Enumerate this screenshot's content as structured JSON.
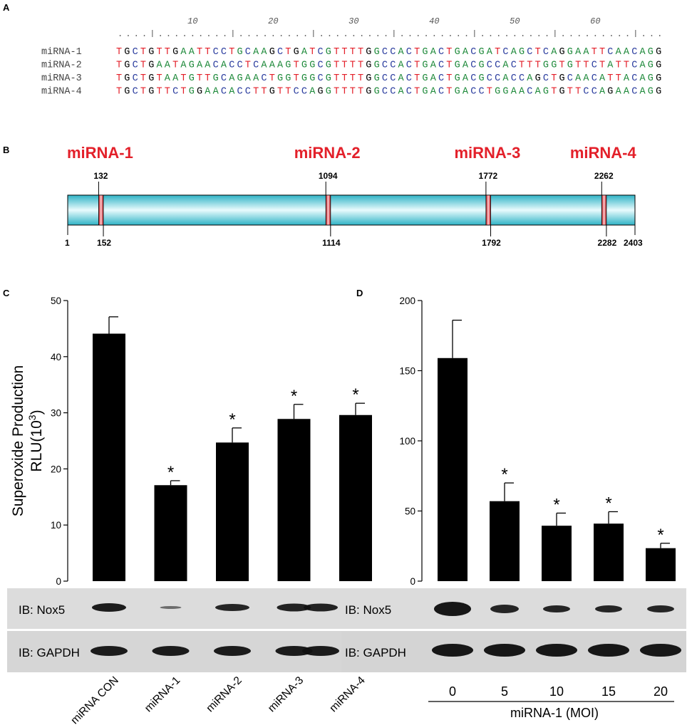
{
  "panel_labels": {
    "a": "A",
    "b": "B",
    "c": "C",
    "d": "D"
  },
  "alignment": {
    "ruler_marks": [
      "10",
      "20",
      "30",
      "40",
      "50",
      "60"
    ],
    "rows": [
      {
        "name": "miRNA-1",
        "seq": "TGCTGTTGAATTCCTGCAAGCTGATCGTTTTGGCCACTGACTGACGATCAGCTCAGGAATTCAACAGG"
      },
      {
        "name": "miRNA-2",
        "seq": "TGCTGAATAGAACACCTCAAAGTGGCGTTTTGGCCACTGACTGACGCCACTTTGGTGTTCTATTCAGG"
      },
      {
        "name": "miRNA-3",
        "seq": "TGCTGTAATGTTGCAGAACTGGTGGCGTTTTGGCCACTGACTGACGCCACCAGCTGCAACATTACAGG"
      },
      {
        "name": "miRNA-4",
        "seq": "TGCTGTTCTGGAACACCTTGTTCCAGGTTTTGGCCACTGACTGACCTGGAACAGTGTTCCAGAACAGG"
      }
    ],
    "base_colors": {
      "T": "#e3202a",
      "G": "#1f8a3b",
      "C": "#2a3c9e",
      "A": "#2a3c9e"
    }
  },
  "map": {
    "total_start": "1",
    "total_end": "2403",
    "sites": [
      {
        "name": "miRNA-1",
        "start": "132",
        "end": "152"
      },
      {
        "name": "miRNA-2",
        "start": "1094",
        "end": "1114"
      },
      {
        "name": "miRNA-3",
        "start": "1772",
        "end": "1792"
      },
      {
        "name": "miRNA-4",
        "start": "2262",
        "end": "2282"
      }
    ]
  },
  "blot_labels": {
    "c_top": "IB: Nox5",
    "c_bottom": "IB: GAPDH",
    "d_top": "IB: Nox5",
    "d_bottom": "IB: GAPDH"
  },
  "chart_data": [
    {
      "type": "bar",
      "panel": "C",
      "categories": [
        "miRNA CON",
        "miRNA-1",
        "miRNA-2",
        "miRNA-3",
        "miRNA-4"
      ],
      "values": [
        44.1,
        17.1,
        24.7,
        28.9,
        29.6
      ],
      "errors": [
        3.0,
        0.8,
        2.6,
        2.6,
        2.1
      ],
      "significant": [
        false,
        true,
        true,
        true,
        true
      ],
      "marker": "*",
      "ylabel_line1": "Superoxide Production",
      "ylabel_line2": "RLU(10",
      "ylabel_sup": "3",
      "ylabel_close": ")",
      "ylim": [
        0,
        50
      ],
      "yticks": [
        "0",
        "10",
        "20",
        "30",
        "40",
        "50"
      ]
    },
    {
      "type": "bar",
      "panel": "D",
      "categories": [
        "0",
        "5",
        "10",
        "15",
        "20"
      ],
      "values": [
        159,
        57,
        39.5,
        41,
        23.5
      ],
      "errors": [
        27,
        13,
        9,
        8.5,
        3.5
      ],
      "significant": [
        false,
        true,
        true,
        true,
        true
      ],
      "marker": "*",
      "xlabel": "miRNA-1 (MOI)",
      "ylim": [
        0,
        200
      ],
      "yticks": [
        "0",
        "50",
        "100",
        "150",
        "200"
      ]
    }
  ]
}
